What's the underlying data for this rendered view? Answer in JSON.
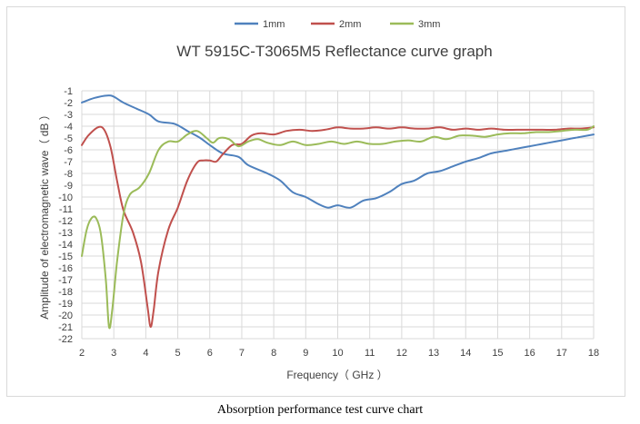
{
  "caption": "Absorption performance test curve chart",
  "chart_data": {
    "type": "line",
    "title": "WT 5915C-T3065M5  Reflectance curve graph",
    "xlabel": "Frequency（ GHz ）",
    "ylabel": "Amplitude of electromagnetic wave（ dB ）",
    "xlim": [
      2,
      18
    ],
    "ylim": [
      -22,
      -1
    ],
    "x_ticks": [
      2,
      3,
      4,
      5,
      6,
      7,
      8,
      9,
      10,
      11,
      12,
      13,
      14,
      15,
      16,
      17,
      18
    ],
    "y_ticks": [
      -1,
      -2,
      -3,
      -4,
      -5,
      -6,
      -7,
      -8,
      -9,
      -10,
      -11,
      -12,
      -13,
      -14,
      -15,
      -16,
      -17,
      -18,
      -19,
      -20,
      -21,
      -22
    ],
    "grid": true,
    "legend_position": "top",
    "series": [
      {
        "name": "1mm",
        "color": "#4f81bd",
        "x": [
          2,
          2.4,
          2.8,
          3.0,
          3.3,
          3.7,
          4.1,
          4.4,
          4.9,
          5.3,
          5.7,
          6.0,
          6.4,
          6.9,
          7.2,
          7.8,
          8.2,
          8.6,
          9.0,
          9.4,
          9.7,
          10.0,
          10.4,
          10.8,
          11.2,
          11.6,
          12.0,
          12.4,
          12.8,
          13.2,
          13.6,
          14.0,
          14.4,
          14.8,
          15.2,
          15.6,
          16.0,
          16.4,
          16.8,
          17.2,
          17.6,
          18.0
        ],
        "y": [
          -2.0,
          -1.6,
          -1.4,
          -1.5,
          -2.0,
          -2.5,
          -3.0,
          -3.6,
          -3.8,
          -4.4,
          -5.0,
          -5.6,
          -6.3,
          -6.6,
          -7.3,
          -8.0,
          -8.6,
          -9.6,
          -10.0,
          -10.6,
          -10.9,
          -10.7,
          -10.9,
          -10.3,
          -10.1,
          -9.6,
          -8.9,
          -8.6,
          -8.0,
          -7.8,
          -7.4,
          -7.0,
          -6.7,
          -6.3,
          -6.1,
          -5.9,
          -5.7,
          -5.5,
          -5.3,
          -5.1,
          -4.9,
          -4.7
        ]
      },
      {
        "name": "2mm",
        "color": "#c0504d",
        "x": [
          2,
          2.2,
          2.5,
          2.7,
          2.9,
          3.1,
          3.3,
          3.6,
          3.85,
          4.05,
          4.15,
          4.25,
          4.4,
          4.7,
          5.0,
          5.3,
          5.6,
          5.8,
          6.0,
          6.2,
          6.4,
          6.7,
          7.0,
          7.3,
          7.6,
          8.0,
          8.4,
          8.8,
          9.2,
          9.6,
          10.0,
          10.4,
          10.8,
          11.2,
          11.6,
          12.0,
          12.4,
          12.8,
          13.2,
          13.6,
          14.0,
          14.4,
          14.8,
          15.2,
          15.6,
          16.0,
          16.4,
          16.8,
          17.2,
          17.6,
          18.0
        ],
        "y": [
          -5.6,
          -4.8,
          -4.1,
          -4.3,
          -5.8,
          -8.6,
          -11.1,
          -13.0,
          -15.5,
          -19.2,
          -21.0,
          -19.5,
          -16.2,
          -12.8,
          -10.9,
          -8.6,
          -7.1,
          -6.9,
          -6.9,
          -7.0,
          -6.4,
          -5.6,
          -5.5,
          -4.8,
          -4.6,
          -4.7,
          -4.4,
          -4.3,
          -4.4,
          -4.3,
          -4.1,
          -4.2,
          -4.2,
          -4.1,
          -4.2,
          -4.1,
          -4.2,
          -4.2,
          -4.1,
          -4.3,
          -4.2,
          -4.3,
          -4.2,
          -4.3,
          -4.3,
          -4.3,
          -4.3,
          -4.3,
          -4.2,
          -4.2,
          -4.1
        ]
      },
      {
        "name": "3mm",
        "color": "#9bbb59",
        "x": [
          2,
          2.15,
          2.3,
          2.45,
          2.6,
          2.75,
          2.85,
          2.95,
          3.1,
          3.3,
          3.5,
          3.8,
          4.1,
          4.4,
          4.7,
          5.0,
          5.3,
          5.6,
          5.9,
          6.1,
          6.3,
          6.6,
          6.9,
          7.2,
          7.5,
          7.8,
          8.2,
          8.6,
          9.0,
          9.4,
          9.8,
          10.2,
          10.6,
          11.0,
          11.4,
          11.8,
          12.2,
          12.6,
          13.0,
          13.4,
          13.8,
          14.2,
          14.6,
          15.0,
          15.4,
          15.8,
          16.2,
          16.6,
          17.0,
          17.4,
          17.8,
          18.0
        ],
        "y": [
          -15.0,
          -12.8,
          -11.8,
          -11.8,
          -13.2,
          -17.0,
          -21.0,
          -19.6,
          -15.5,
          -11.5,
          -9.8,
          -9.2,
          -8.0,
          -6.0,
          -5.3,
          -5.3,
          -4.7,
          -4.4,
          -5.0,
          -5.4,
          -5.0,
          -5.1,
          -5.7,
          -5.3,
          -5.1,
          -5.4,
          -5.6,
          -5.3,
          -5.6,
          -5.5,
          -5.3,
          -5.5,
          -5.3,
          -5.5,
          -5.5,
          -5.3,
          -5.2,
          -5.3,
          -4.9,
          -5.1,
          -4.8,
          -4.8,
          -4.9,
          -4.7,
          -4.6,
          -4.6,
          -4.5,
          -4.5,
          -4.4,
          -4.3,
          -4.3,
          -4.0
        ]
      }
    ]
  }
}
